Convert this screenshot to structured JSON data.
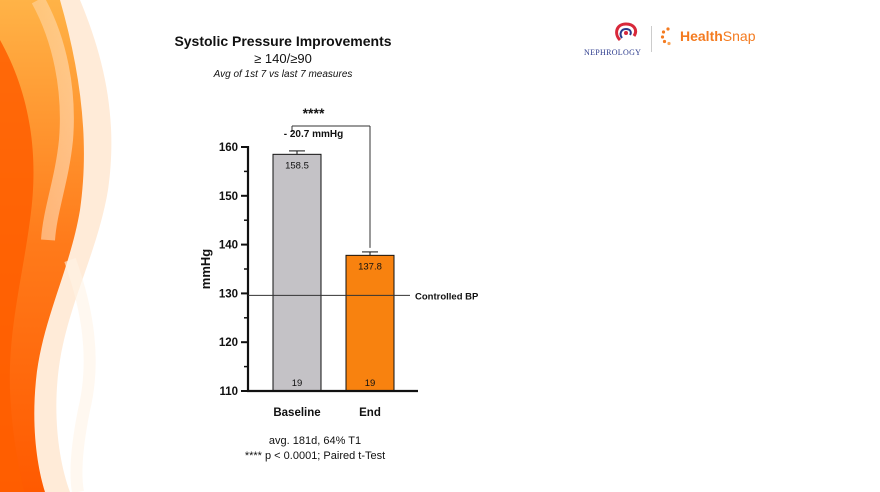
{
  "header": {
    "title": "Systolic Pressure Improvements",
    "subtitle": "≥ 140/≥90",
    "note": "Avg of 1st 7 vs last 7 measures"
  },
  "logos": {
    "nephrology": "NEPHROLOGY",
    "healthsnap_a": "Health",
    "healthsnap_b": "Snap"
  },
  "footnote": {
    "line1": "avg. 181d,  64% T1",
    "line2": "**** p < 0.0001; Paired t-Test"
  },
  "chart_data": {
    "type": "bar",
    "categories": [
      "Baseline",
      "End"
    ],
    "values": [
      158.5,
      137.8
    ],
    "value_labels": [
      "158.5",
      "137.8"
    ],
    "n_labels": [
      "19",
      "19"
    ],
    "error_upper": [
      159.2,
      138.5
    ],
    "bar_colors": [
      "#c4c2c6",
      "#f8820f"
    ],
    "ylabel": "mmHg",
    "ylim": [
      110,
      160
    ],
    "yticks": [
      110,
      120,
      130,
      140,
      150,
      160
    ],
    "reference_line": {
      "value": 129.6,
      "label": "Controlled BP"
    },
    "significance": {
      "stars": "****",
      "difference": "- 20.7 mmHg"
    },
    "grid": false
  }
}
